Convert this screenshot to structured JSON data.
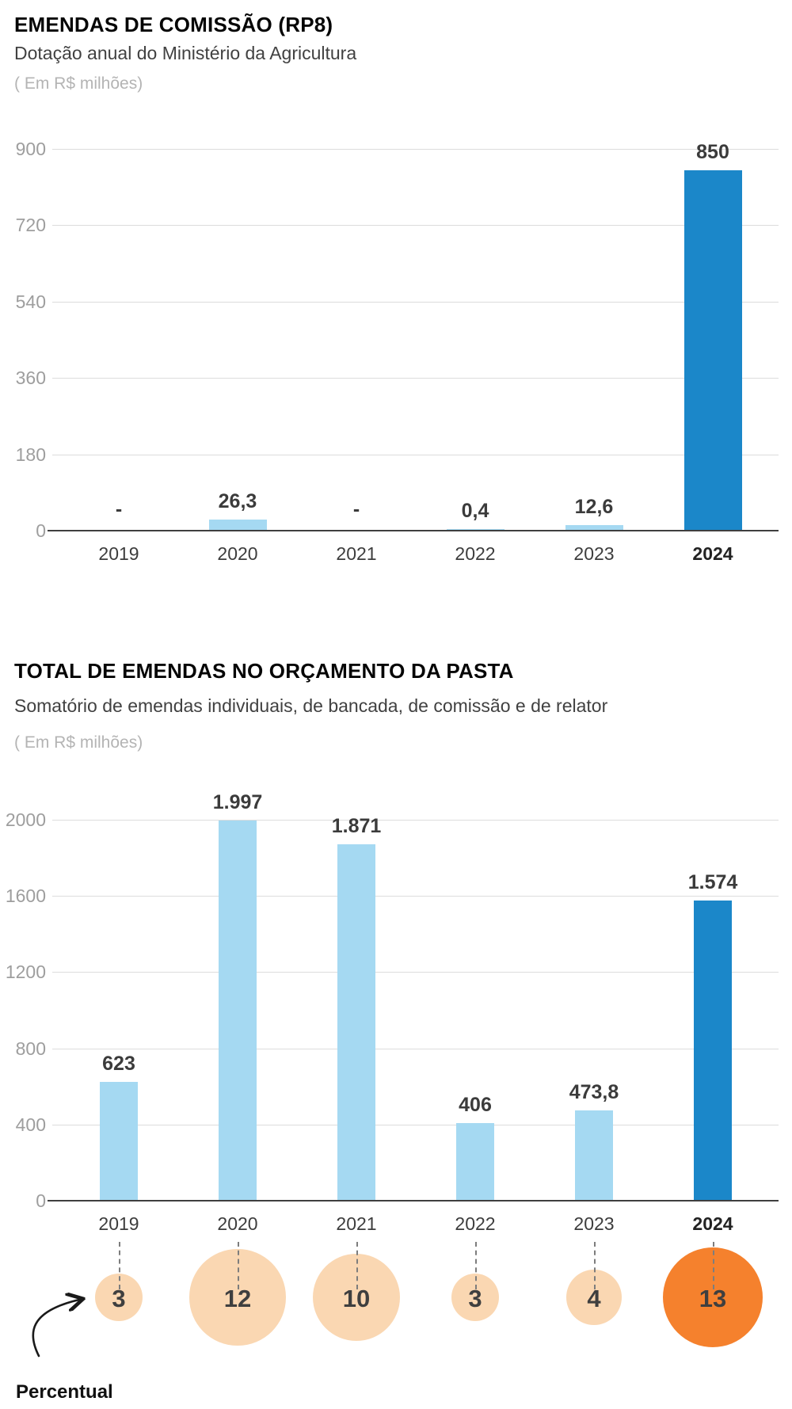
{
  "colors": {
    "bar_light": "#a5d9f2",
    "bar_highlight": "#1b87c9",
    "circle_light": "#fad7b2",
    "circle_highlight": "#f5812d",
    "grid_line": "#dcdcdc",
    "axis_line": "#3f3f3f",
    "tick_text": "#9e9e9e",
    "value_text": "#3b3b3b",
    "arrow": "#1a1a1a"
  },
  "chart_data": [
    {
      "type": "bar",
      "title": "EMENDAS DE COMISSÃO (RP8)",
      "subtitle": "Dotação anual do Ministério da Agricultura",
      "unit_note": "( Em R$ milhões)",
      "categories": [
        "2019",
        "2020",
        "2021",
        "2022",
        "2023",
        "2024"
      ],
      "values": [
        null,
        26.3,
        null,
        0.4,
        12.6,
        850
      ],
      "value_labels": [
        "-",
        "26,3",
        "-",
        "0,4",
        "12,6",
        "850"
      ],
      "yticks": [
        0,
        180,
        360,
        540,
        720,
        900
      ],
      "ylim": [
        0,
        900
      ],
      "grid": true,
      "legend": "none",
      "highlight_category": "2024"
    },
    {
      "type": "bar",
      "title": "TOTAL DE EMENDAS NO ORÇAMENTO DA PASTA",
      "subtitle": "Somatório de emendas individuais, de bancada, de comissão e de relator",
      "unit_note": "( Em R$ milhões)",
      "categories": [
        "2019",
        "2020",
        "2021",
        "2022",
        "2023",
        "2024"
      ],
      "values": [
        623,
        1997,
        1871,
        406,
        473.8,
        1574
      ],
      "value_labels": [
        "623",
        "1.997",
        "1.871",
        "406",
        "473,8",
        "1.574"
      ],
      "yticks": [
        0,
        400,
        800,
        1200,
        1600,
        2000
      ],
      "ylim": [
        0,
        2000
      ],
      "grid": true,
      "legend": "none",
      "highlight_category": "2024",
      "percent_row": {
        "label": "Percentual",
        "values": [
          3,
          12,
          10,
          3,
          4,
          13
        ],
        "value_labels": [
          "3",
          "12",
          "10",
          "3",
          "4",
          "13"
        ],
        "highlight_category": "2024"
      }
    }
  ]
}
